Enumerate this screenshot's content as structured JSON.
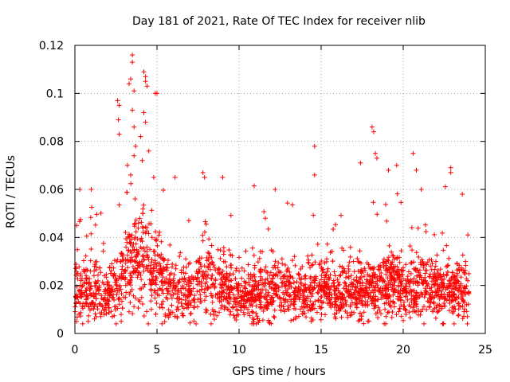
{
  "chart_data": {
    "type": "scatter",
    "title": "Day 181 of 2021, Rate Of TEC Index for receiver nlib",
    "xlabel": "GPS time / hours",
    "ylabel": "ROTI / TECUs",
    "xlim": [
      0,
      25
    ],
    "ylim": [
      0,
      0.12
    ],
    "xticks": [
      0,
      5,
      10,
      15,
      20,
      25
    ],
    "xtick_labels": [
      "0",
      "5",
      "10",
      "15",
      "20",
      "25"
    ],
    "yticks": [
      0,
      0.02,
      0.04,
      0.06,
      0.08,
      0.1,
      0.12
    ],
    "ytick_labels": [
      "0",
      "0.02",
      "0.04",
      "0.06",
      "0.08",
      "0.1",
      "0.12"
    ],
    "grid": true,
    "marker": "+",
    "marker_color": "#ff0000",
    "x_range_hours": [
      0,
      24
    ],
    "series": [
      {
        "name": "ROTI",
        "color": "#ff0000",
        "notable_points": [
          {
            "x": 2.6,
            "y": 0.097
          },
          {
            "x": 2.7,
            "y": 0.095
          },
          {
            "x": 2.65,
            "y": 0.089
          },
          {
            "x": 2.7,
            "y": 0.083
          },
          {
            "x": 3.5,
            "y": 0.116
          },
          {
            "x": 3.5,
            "y": 0.113
          },
          {
            "x": 3.4,
            "y": 0.106
          },
          {
            "x": 3.3,
            "y": 0.104
          },
          {
            "x": 3.6,
            "y": 0.101
          },
          {
            "x": 3.5,
            "y": 0.093
          },
          {
            "x": 3.6,
            "y": 0.086
          },
          {
            "x": 3.7,
            "y": 0.078
          },
          {
            "x": 3.6,
            "y": 0.074
          },
          {
            "x": 3.2,
            "y": 0.07
          },
          {
            "x": 3.4,
            "y": 0.066
          },
          {
            "x": 4.2,
            "y": 0.109
          },
          {
            "x": 4.3,
            "y": 0.107
          },
          {
            "x": 4.3,
            "y": 0.105
          },
          {
            "x": 4.4,
            "y": 0.103
          },
          {
            "x": 4.2,
            "y": 0.092
          },
          {
            "x": 4.3,
            "y": 0.088
          },
          {
            "x": 4.0,
            "y": 0.082
          },
          {
            "x": 4.5,
            "y": 0.076
          },
          {
            "x": 4.1,
            "y": 0.072
          },
          {
            "x": 4.9,
            "y": 0.1
          },
          {
            "x": 5.0,
            "y": 0.1
          },
          {
            "x": 4.8,
            "y": 0.065
          },
          {
            "x": 6.1,
            "y": 0.065
          },
          {
            "x": 7.8,
            "y": 0.067
          },
          {
            "x": 7.9,
            "y": 0.065
          },
          {
            "x": 9.0,
            "y": 0.065
          },
          {
            "x": 11.6,
            "y": 0.048
          },
          {
            "x": 12.2,
            "y": 0.06
          },
          {
            "x": 14.6,
            "y": 0.078
          },
          {
            "x": 14.6,
            "y": 0.066
          },
          {
            "x": 18.1,
            "y": 0.086
          },
          {
            "x": 18.2,
            "y": 0.084
          },
          {
            "x": 18.3,
            "y": 0.075
          },
          {
            "x": 18.4,
            "y": 0.073
          },
          {
            "x": 17.4,
            "y": 0.071
          },
          {
            "x": 19.1,
            "y": 0.068
          },
          {
            "x": 19.6,
            "y": 0.07
          },
          {
            "x": 20.6,
            "y": 0.075
          },
          {
            "x": 20.8,
            "y": 0.068
          },
          {
            "x": 21.1,
            "y": 0.06
          },
          {
            "x": 22.9,
            "y": 0.069
          },
          {
            "x": 22.9,
            "y": 0.067
          },
          {
            "x": 23.6,
            "y": 0.058
          },
          {
            "x": 0.3,
            "y": 0.06
          },
          {
            "x": 1.0,
            "y": 0.06
          },
          {
            "x": 0.1,
            "y": 0.005
          },
          {
            "x": 8.3,
            "y": 0.004
          },
          {
            "x": 22.4,
            "y": 0.004
          },
          {
            "x": 23.1,
            "y": 0.004
          }
        ],
        "baseline_trend": [
          {
            "x": 0,
            "y": 0.017
          },
          {
            "x": 1,
            "y": 0.018
          },
          {
            "x": 2,
            "y": 0.017
          },
          {
            "x": 3,
            "y": 0.024
          },
          {
            "x": 4,
            "y": 0.032
          },
          {
            "x": 5,
            "y": 0.025
          },
          {
            "x": 6,
            "y": 0.019
          },
          {
            "x": 7,
            "y": 0.017
          },
          {
            "x": 8,
            "y": 0.023
          },
          {
            "x": 9,
            "y": 0.02
          },
          {
            "x": 10,
            "y": 0.016
          },
          {
            "x": 11,
            "y": 0.016
          },
          {
            "x": 12,
            "y": 0.018
          },
          {
            "x": 13,
            "y": 0.018
          },
          {
            "x": 14,
            "y": 0.017
          },
          {
            "x": 15,
            "y": 0.021
          },
          {
            "x": 16,
            "y": 0.017
          },
          {
            "x": 17,
            "y": 0.018
          },
          {
            "x": 18,
            "y": 0.019
          },
          {
            "x": 19,
            "y": 0.02
          },
          {
            "x": 20,
            "y": 0.02
          },
          {
            "x": 21,
            "y": 0.02
          },
          {
            "x": 22,
            "y": 0.019
          },
          {
            "x": 23,
            "y": 0.018
          },
          {
            "x": 24,
            "y": 0.017
          }
        ],
        "typical_spread": 0.006
      }
    ]
  }
}
